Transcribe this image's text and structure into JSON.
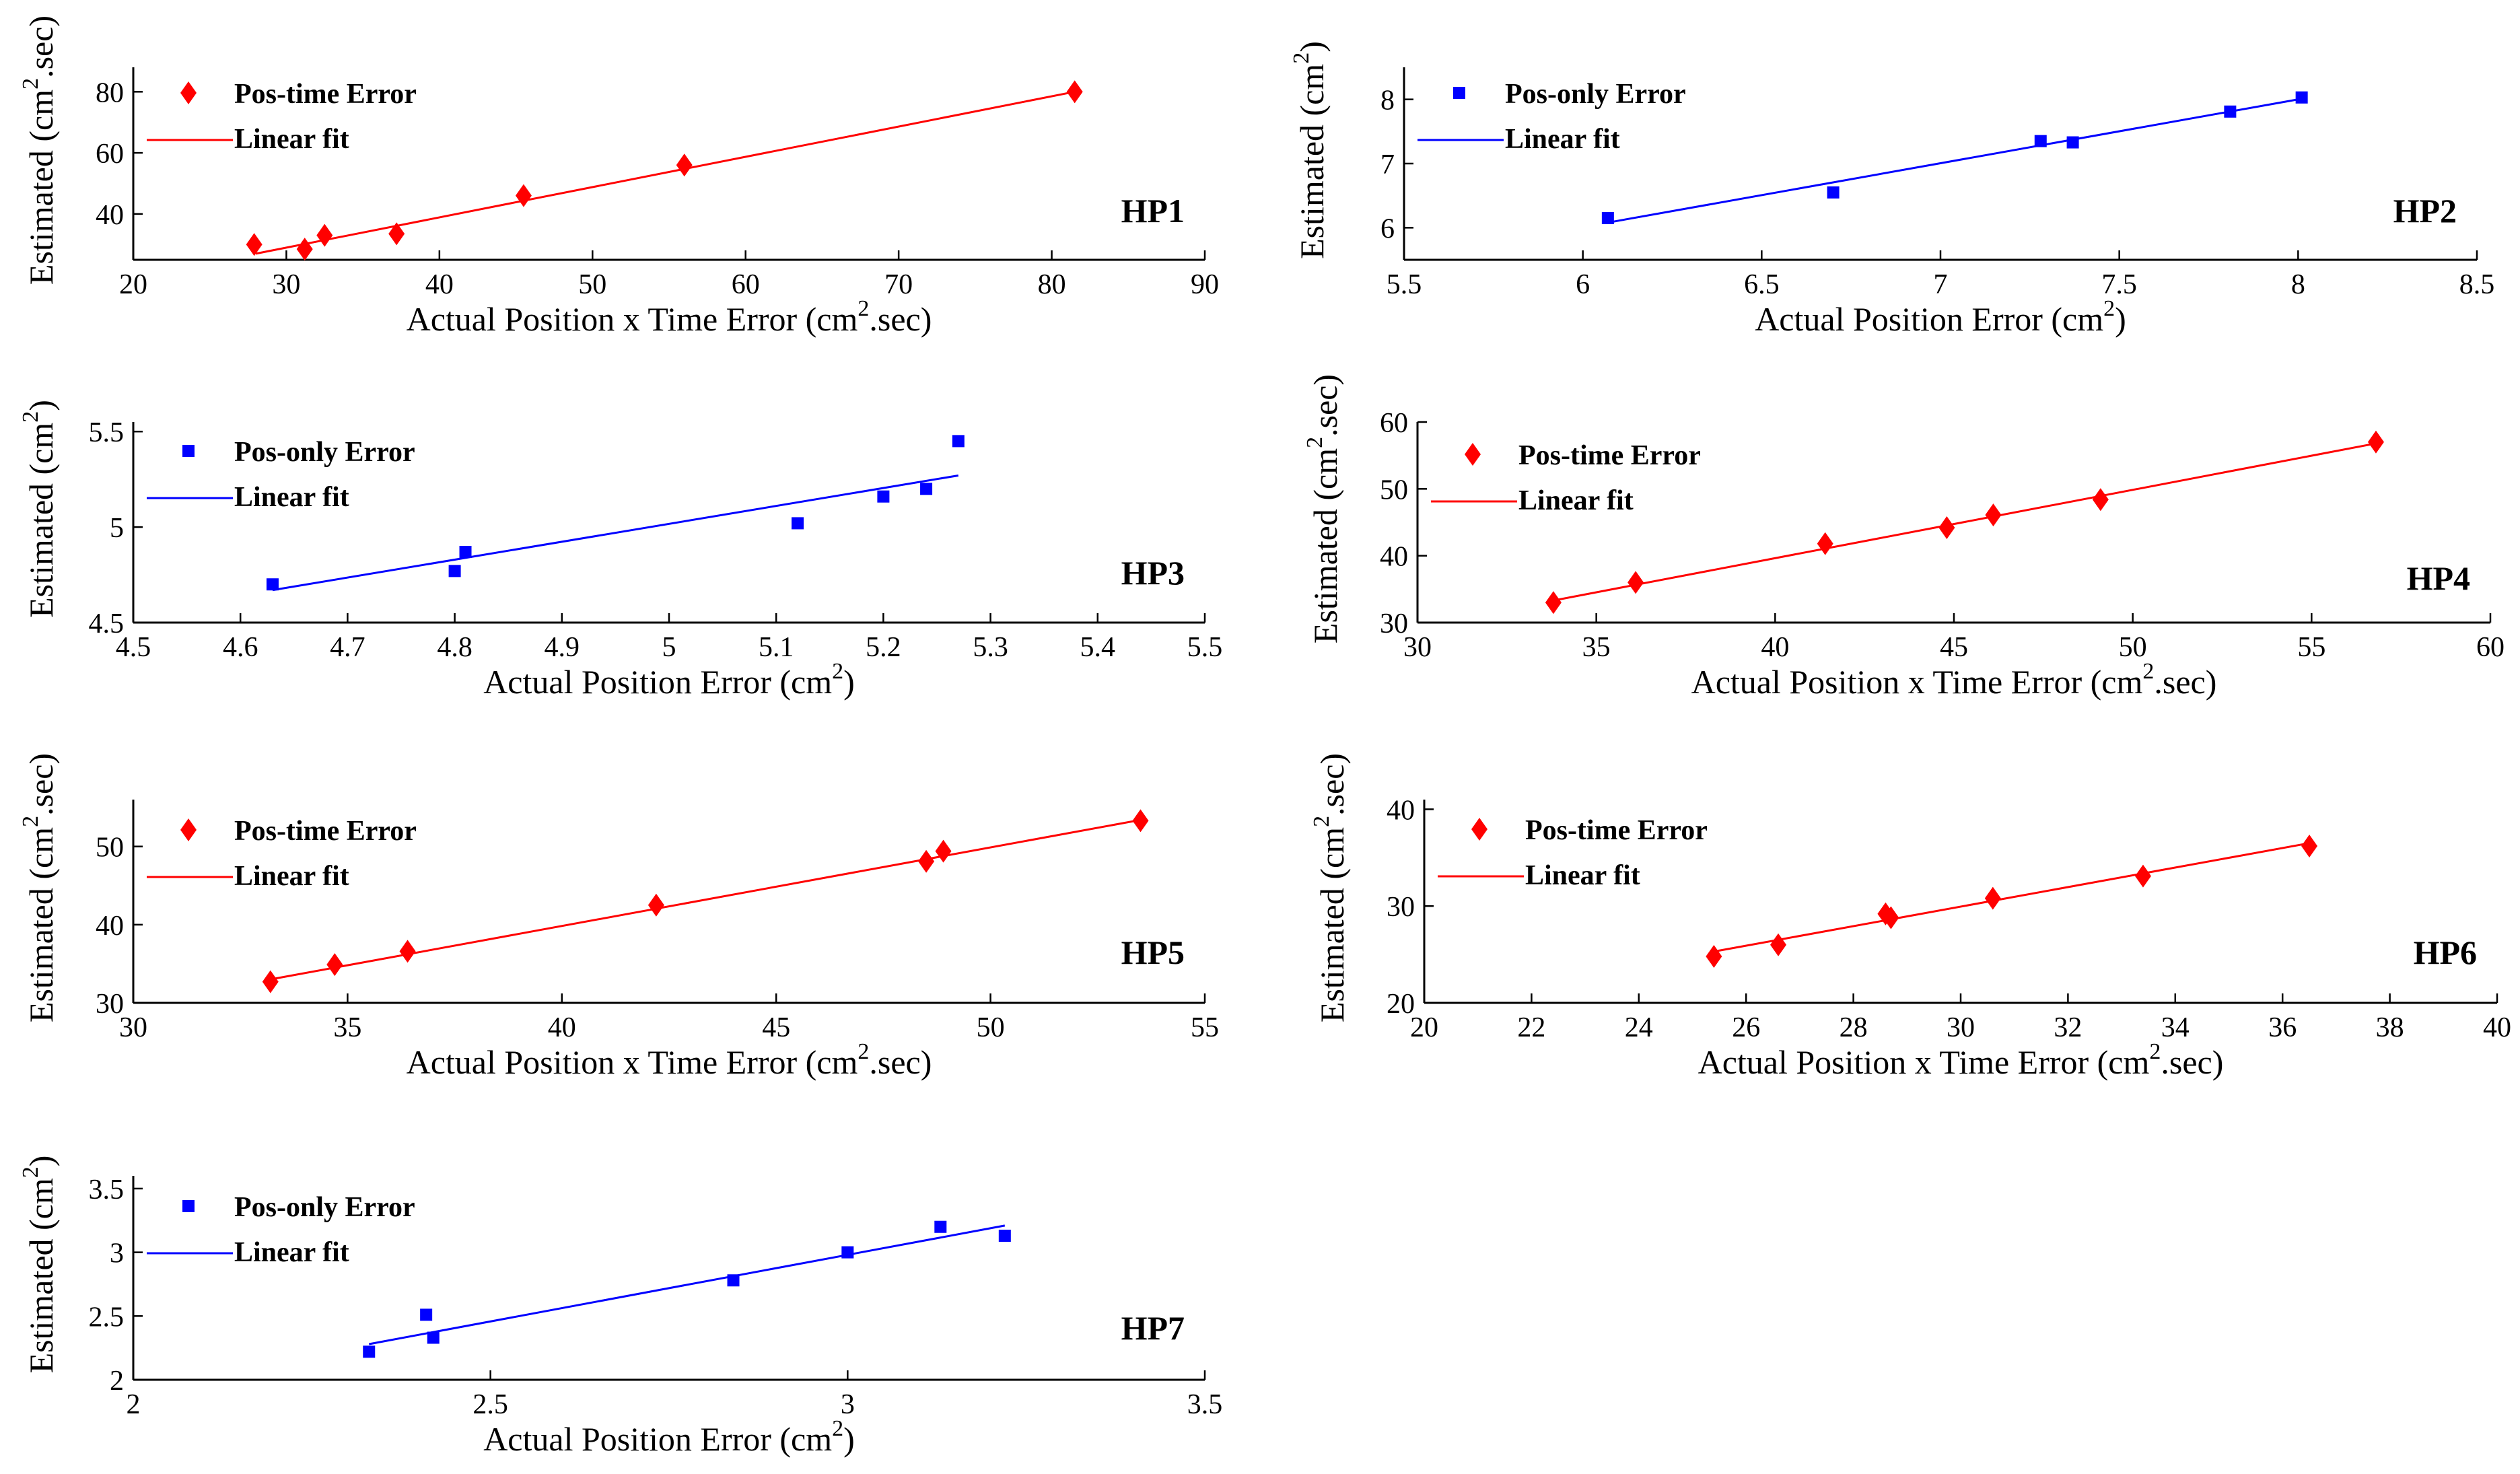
{
  "colors": {
    "red": "#ff0000",
    "blue": "#0000ff",
    "axis": "#000000"
  },
  "chart_data": [
    {
      "type": "scatter",
      "panel": "HP1",
      "xlabel": "Actual  Position x Time Error (cm",
      "xunit": "2",
      "xlabel_tail": ".sec)",
      "ylabel": "Estimated (cm",
      "yunit": "2",
      "ylabel_tail": ".sec)",
      "xlim": [
        20,
        90
      ],
      "ylim": [
        25,
        88
      ],
      "xticks": [
        20,
        30,
        40,
        50,
        60,
        70,
        80,
        90
      ],
      "yticks": [
        40,
        60,
        80
      ],
      "legend": [
        "Pos-time Error",
        "Linear fit"
      ],
      "marker": "diamond",
      "color": "red",
      "series": [
        {
          "name": "Pos-time Error",
          "x": [
            27.9,
            31.2,
            32.5,
            37.2,
            45.5,
            56.0,
            81.5
          ],
          "y": [
            30,
            28.5,
            33,
            33.5,
            46,
            56,
            80
          ]
        }
      ],
      "fit": {
        "name": "Linear fit",
        "x": [
          28,
          81.5
        ],
        "y": [
          27,
          80
        ]
      }
    },
    {
      "type": "scatter",
      "panel": "HP2",
      "xlabel": "Actual  Position Error (cm",
      "xunit": "2",
      "xlabel_tail": ")",
      "ylabel": "Estimated (cm",
      "yunit": "2",
      "ylabel_tail": ")",
      "xlim": [
        5.5,
        8.5
      ],
      "ylim": [
        5.5,
        8.5
      ],
      "xticks": [
        5.5,
        6,
        6.5,
        7,
        7.5,
        8,
        8.5
      ],
      "yticks": [
        6,
        7,
        8
      ],
      "legend": [
        "Pos-only Error",
        "Linear fit"
      ],
      "marker": "square",
      "color": "blue",
      "series": [
        {
          "name": "Pos-only Error",
          "x": [
            6.07,
            6.7,
            7.28,
            7.37,
            7.81,
            8.01
          ],
          "y": [
            6.15,
            6.55,
            7.35,
            7.33,
            7.81,
            8.03
          ]
        }
      ],
      "fit": {
        "name": "Linear fit",
        "x": [
          6.07,
          8.01
        ],
        "y": [
          6.08,
          8.01
        ]
      }
    },
    {
      "type": "scatter",
      "panel": "HP3",
      "xlabel": "Actual  Position Error (cm",
      "xunit": "2",
      "xlabel_tail": ")",
      "ylabel": "Estimated (cm",
      "yunit": "2",
      "ylabel_tail": ")",
      "xlim": [
        4.5,
        5.5
      ],
      "ylim": [
        4.5,
        5.55
      ],
      "xticks": [
        4.5,
        4.6,
        4.7,
        4.8,
        4.9,
        5,
        5.1,
        5.2,
        5.3,
        5.4,
        5.5
      ],
      "yticks": [
        4.5,
        5,
        5.5
      ],
      "legend": [
        "Pos-only Error",
        "Linear fit"
      ],
      "marker": "square",
      "color": "blue",
      "series": [
        {
          "name": "Pos-only Error",
          "x": [
            4.63,
            4.8,
            4.81,
            5.12,
            5.2,
            5.24,
            5.27
          ],
          "y": [
            4.7,
            4.77,
            4.87,
            5.02,
            5.16,
            5.2,
            5.45
          ]
        }
      ],
      "fit": {
        "name": "Linear fit",
        "x": [
          4.63,
          5.27
        ],
        "y": [
          4.67,
          5.27
        ]
      }
    },
    {
      "type": "scatter",
      "panel": "HP4",
      "xlabel": "Actual  Position x Time Error (cm",
      "xunit": "2",
      "xlabel_tail": ".sec)",
      "ylabel": "Estimated (cm",
      "yunit": "2",
      "ylabel_tail": ".sec)",
      "xlim": [
        30,
        60
      ],
      "ylim": [
        30,
        60
      ],
      "xticks": [
        30,
        35,
        40,
        45,
        50,
        55,
        60
      ],
      "yticks": [
        30,
        40,
        50,
        60
      ],
      "legend": [
        "Pos-time Error",
        "Linear fit"
      ],
      "marker": "diamond",
      "color": "red",
      "series": [
        {
          "name": "Pos-time Error",
          "x": [
            33.8,
            36.1,
            41.4,
            44.8,
            46.1,
            49.1,
            56.8
          ],
          "y": [
            33,
            36,
            41.8,
            44.2,
            46.1,
            48.4,
            57
          ]
        }
      ],
      "fit": {
        "name": "Linear fit",
        "x": [
          33.8,
          56.8
        ],
        "y": [
          33.3,
          56.8
        ]
      }
    },
    {
      "type": "scatter",
      "panel": "HP5",
      "xlabel": "Actual  Position x Time Error (cm",
      "xunit": "2",
      "xlabel_tail": ".sec)",
      "ylabel": "Estimated (cm",
      "yunit": "2",
      "ylabel_tail": ".sec)",
      "xlim": [
        30,
        55
      ],
      "ylim": [
        30,
        56
      ],
      "xticks": [
        30,
        35,
        40,
        45,
        50,
        55
      ],
      "yticks": [
        30,
        40,
        50
      ],
      "legend": [
        "Pos-time Error",
        "Linear fit"
      ],
      "marker": "diamond",
      "color": "red",
      "series": [
        {
          "name": "Pos-time Error",
          "x": [
            33.2,
            34.7,
            36.4,
            42.2,
            48.5,
            48.9,
            53.5
          ],
          "y": [
            32.7,
            34.9,
            36.6,
            42.5,
            48.1,
            49.4,
            53.3
          ]
        }
      ],
      "fit": {
        "name": "Linear fit",
        "x": [
          33.2,
          53.5
        ],
        "y": [
          33,
          53.4
        ]
      }
    },
    {
      "type": "scatter",
      "panel": "HP6",
      "xlabel": "Actual  Position x Time Error (cm",
      "xunit": "2",
      "xlabel_tail": ".sec)",
      "ylabel": "Estimated (cm",
      "yunit": "2",
      "ylabel_tail": ".sec)",
      "xlim": [
        20,
        40
      ],
      "ylim": [
        20,
        41
      ],
      "xticks": [
        20,
        22,
        24,
        26,
        28,
        30,
        32,
        34,
        36,
        38,
        40
      ],
      "yticks": [
        20,
        30,
        40
      ],
      "legend": [
        "Pos-time Error",
        "Linear fit"
      ],
      "marker": "diamond",
      "color": "red",
      "series": [
        {
          "name": "Pos-time Error",
          "x": [
            25.4,
            26.6,
            28.6,
            28.7,
            30.6,
            33.4,
            36.5
          ],
          "y": [
            24.8,
            26,
            29.2,
            28.8,
            30.8,
            33.1,
            36.2
          ]
        }
      ],
      "fit": {
        "name": "Linear fit",
        "x": [
          25.4,
          36.5
        ],
        "y": [
          25.3,
          36.5
        ]
      }
    },
    {
      "type": "scatter",
      "panel": "HP7",
      "xlabel": "Actual  Position Error (cm",
      "xunit": "2",
      "xlabel_tail": ")",
      "ylabel": "Estimated (cm",
      "yunit": "2",
      "ylabel_tail": ")",
      "xlim": [
        2,
        3.5
      ],
      "ylim": [
        2,
        3.6
      ],
      "xticks": [
        2,
        2.5,
        3,
        3.5
      ],
      "yticks": [
        2,
        2.5,
        3,
        3.5
      ],
      "legend": [
        "Pos-only Error",
        "Linear fit"
      ],
      "marker": "square",
      "color": "blue",
      "series": [
        {
          "name": "Pos-only Error",
          "x": [
            2.33,
            2.41,
            2.42,
            2.84,
            3.0,
            3.13,
            3.22
          ],
          "y": [
            2.22,
            2.51,
            2.33,
            2.78,
            3.0,
            3.2,
            3.13
          ]
        }
      ],
      "fit": {
        "name": "Linear fit",
        "x": [
          2.33,
          3.22
        ],
        "y": [
          2.28,
          3.21
        ]
      }
    }
  ]
}
